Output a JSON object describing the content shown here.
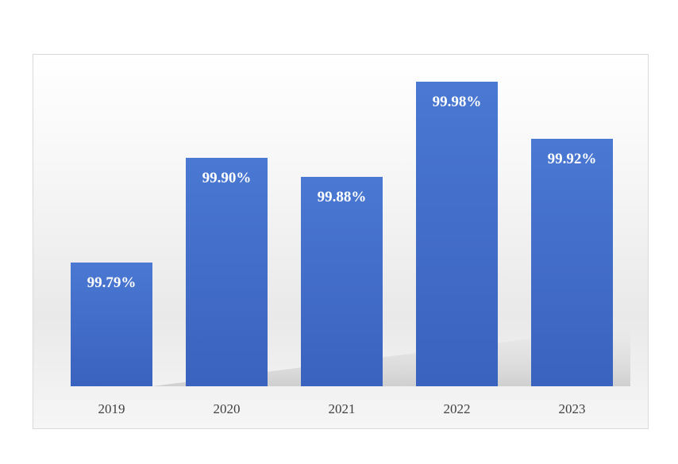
{
  "colors": {
    "bar_top": "#4a78d2",
    "bar_bottom": "#3a62bf",
    "label_text": "#ffffff",
    "axis_text": "#404040"
  },
  "chart_data": {
    "type": "bar",
    "categories": [
      "2019",
      "2020",
      "2021",
      "2022",
      "2023"
    ],
    "values": [
      99.79,
      99.9,
      99.88,
      99.98,
      99.92
    ],
    "data_labels": [
      "99.79%",
      "99.90%",
      "99.88%",
      "99.98%",
      "99.92%"
    ],
    "title": "",
    "xlabel": "",
    "ylabel": "",
    "ylim": [
      99.66,
      100.0
    ],
    "grid": false,
    "legend": "none"
  }
}
